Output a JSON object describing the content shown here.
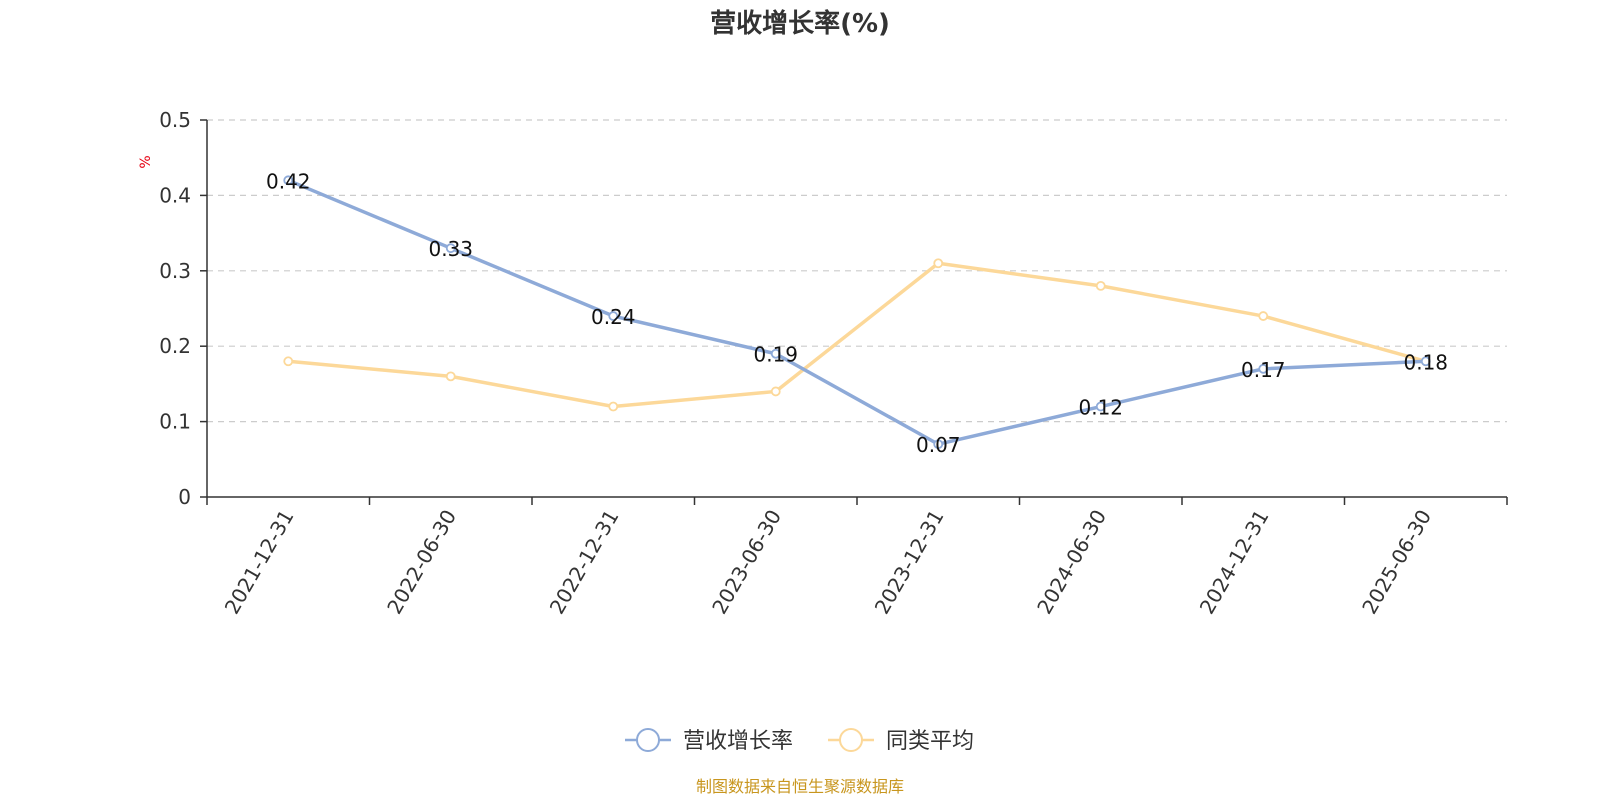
{
  "chart_data": {
    "type": "line",
    "title": "营收增长率(%)",
    "ylabel": "%",
    "categories": [
      "2021-12-31",
      "2022-06-30",
      "2022-12-31",
      "2023-06-30",
      "2023-12-31",
      "2024-06-30",
      "2024-12-31",
      "2025-06-30"
    ],
    "series": [
      {
        "name": "营收增长率",
        "color": "#8eaad8",
        "values": [
          0.42,
          0.33,
          0.24,
          0.19,
          0.07,
          0.12,
          0.17,
          0.18
        ],
        "labels": [
          "0.42",
          "0.33",
          "0.24",
          "0.19",
          "0.07",
          "0.12",
          "0.17",
          "0.18"
        ]
      },
      {
        "name": "同类平均",
        "color": "#fcd899",
        "values": [
          0.18,
          0.16,
          0.12,
          0.14,
          0.31,
          0.28,
          0.24,
          0.18
        ]
      }
    ],
    "ylim": [
      0,
      0.5
    ],
    "yticks": [
      "0",
      "0.1",
      "0.2",
      "0.3",
      "0.4",
      "0.5"
    ],
    "grid": true,
    "legend": "bottom-center"
  },
  "source": "制图数据来自恒生聚源数据库"
}
